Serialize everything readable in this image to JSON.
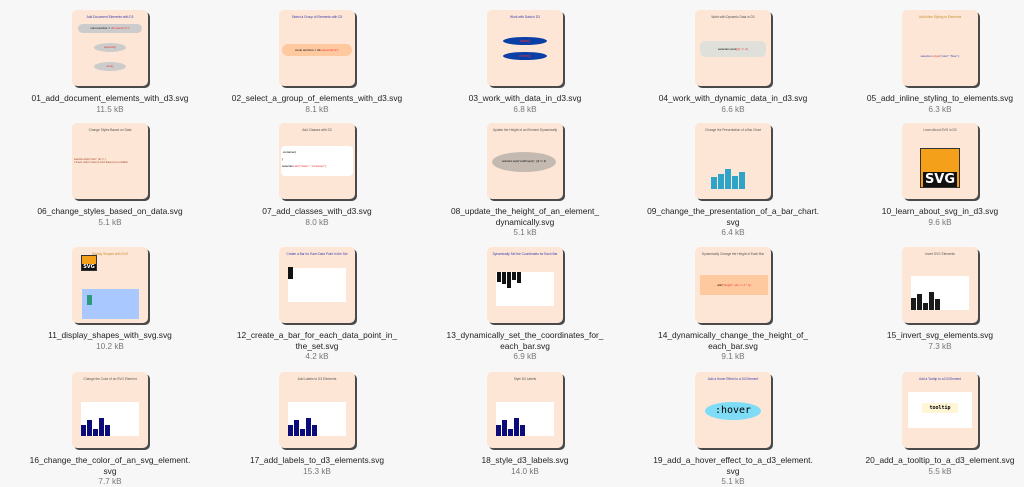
{
  "files": [
    {
      "name": "01_add_document_elements_with_d3.svg",
      "size": "11.5 kB",
      "thumb": {
        "title": "Add Document Elements with D3",
        "code": "const anchor = ",
        "code_hl": "d3.select(\"a\");",
        "pill1": "append()",
        "pill2": "text()"
      }
    },
    {
      "name": "02_select_a_group_of_elements_with_d3.svg",
      "size": "8.1 kB",
      "thumb": {
        "title": "Select a Group of Elements with D3",
        "code": "const anchors = d3.",
        "code_hl": "selectAll(\"a\");"
      }
    },
    {
      "name": "03_work_with_data_in_d3.svg",
      "size": "6.8 kB",
      "thumb": {
        "title": "Work with Data in D3",
        "pill1": "data()",
        "pill2": "enter()"
      }
    },
    {
      "name": "04_work_with_dynamic_data_in_d3.svg",
      "size": "6.6 kB",
      "thumb": {
        "title": "Work with Dynamic Data in D3",
        "code": "selection.text(",
        "code_hl": "(d) => d)"
      }
    },
    {
      "name": "05_add_inline_styling_to_elements.svg",
      "size": "6.3 kB",
      "thumb": {
        "title": "Add Inline Styling to Elements",
        "code": "selection.",
        "code_hl": "style",
        "code2": "(\"color\",\"blue\");"
      }
    },
    {
      "name": "06_change_styles_based_on_data.svg",
      "size": "5.1 kB",
      "thumb": {
        "title": "Change Styles Based on Data",
        "code": "selection.style(\"color\", (d) => {",
        "code2": "// Insert code to return a color based on a condition"
      }
    },
    {
      "name": "07_add_classes_with_d3.svg",
      "size": "8.0 kB",
      "thumb": {
        "title": "Add Classes with D3",
        "line1": ".container{",
        "line2": "}",
        "code": "selection.",
        "code_hl": "attr(\"class\", \"container\");"
      }
    },
    {
      "name": "08_update_the_height_of_an_element_dynamically.svg",
      "size": "5.1 kB",
      "thumb": {
        "title": "Update the Height of an Element Dynamically",
        "code": "selection.style(\"cssProperty\", (d) => d)"
      }
    },
    {
      "name": "09_change_the_presentation_of_a_bar_chart.svg",
      "size": "6.4 kB",
      "thumb": {
        "title": "Change the Presentation of a Bar Chart",
        "bars": [
          12,
          15,
          20,
          13,
          17
        ],
        "color": "#30a3c8"
      }
    },
    {
      "name": "10_learn_about_svg_in_d3.svg",
      "size": "9.6 kB",
      "thumb": {
        "title": "Learn About SVG in D3",
        "logo": "SVG"
      }
    },
    {
      "name": "11_display_shapes_with_svg.svg",
      "size": "10.2 kB",
      "thumb": {
        "title": "Display Shapes with SVG",
        "logo": "SVG"
      }
    },
    {
      "name": "12_create_a_bar_for_each_data_point_in_the_set.svg",
      "size": "4.2 kB",
      "thumb": {
        "title": "Create a Bar for Each Data Point in the Set"
      }
    },
    {
      "name": "13_dynamically_set_the_coordinates_for_each_bar.svg",
      "size": "6.9 kB",
      "thumb": {
        "title": "Dynamically Set the Coordinates for Each Bar",
        "bars": [
          10,
          12,
          16,
          8,
          11
        ]
      }
    },
    {
      "name": "14_dynamically_change_the_height_of_each_bar.svg",
      "size": "9.1 kB",
      "thumb": {
        "title": "Dynamically Change the Height of Each Bar",
        "code": ".attr(",
        "code_hl": "\"height\", (d) => d * 3);"
      }
    },
    {
      "name": "15_invert_svg_elements.svg",
      "size": "7.3 kB",
      "thumb": {
        "title": "Invert SVG Elements",
        "bars": [
          12,
          16,
          7,
          18,
          11
        ]
      }
    },
    {
      "name": "16_change_the_color_of_an_svg_element.svg",
      "size": "7.7 kB",
      "thumb": {
        "title": "Change the Color of an SVG Element",
        "bars": [
          11,
          16,
          7,
          18,
          11
        ],
        "color": "#0b0b7a"
      }
    },
    {
      "name": "17_add_labels_to_d3_elements.svg",
      "size": "15.3 kB",
      "thumb": {
        "title": "Add Labels to D3 Elements",
        "bars": [
          11,
          16,
          7,
          18,
          11
        ],
        "color": "#0b0b7a"
      }
    },
    {
      "name": "18_style_d3_labels.svg",
      "size": "14.0 kB",
      "thumb": {
        "title": "Style D3 Labels",
        "bars": [
          11,
          16,
          7,
          18,
          11
        ],
        "color": "#0b0b7a"
      }
    },
    {
      "name": "19_add_a_hover_effect_to_a_d3_element.svg",
      "size": "5.1 kB",
      "thumb": {
        "title": "Add a Hover Effect to a D3 Element",
        "pill1": ":hover"
      }
    },
    {
      "name": "20_add_a_tooltip_to_a_d3_element.svg",
      "size": "5.5 kB",
      "thumb": {
        "title": "Add a Tooltip to a D3 Element",
        "code": "tooltip"
      }
    }
  ],
  "colors": {
    "thumb_bg": "#fde6d5",
    "title_blue": "#3b3bb0",
    "code_red": "#e33333",
    "bar_blue": "#0b0b7a",
    "bar_teal": "#30a3c8",
    "hover_cyan": "#7fdcf7"
  }
}
